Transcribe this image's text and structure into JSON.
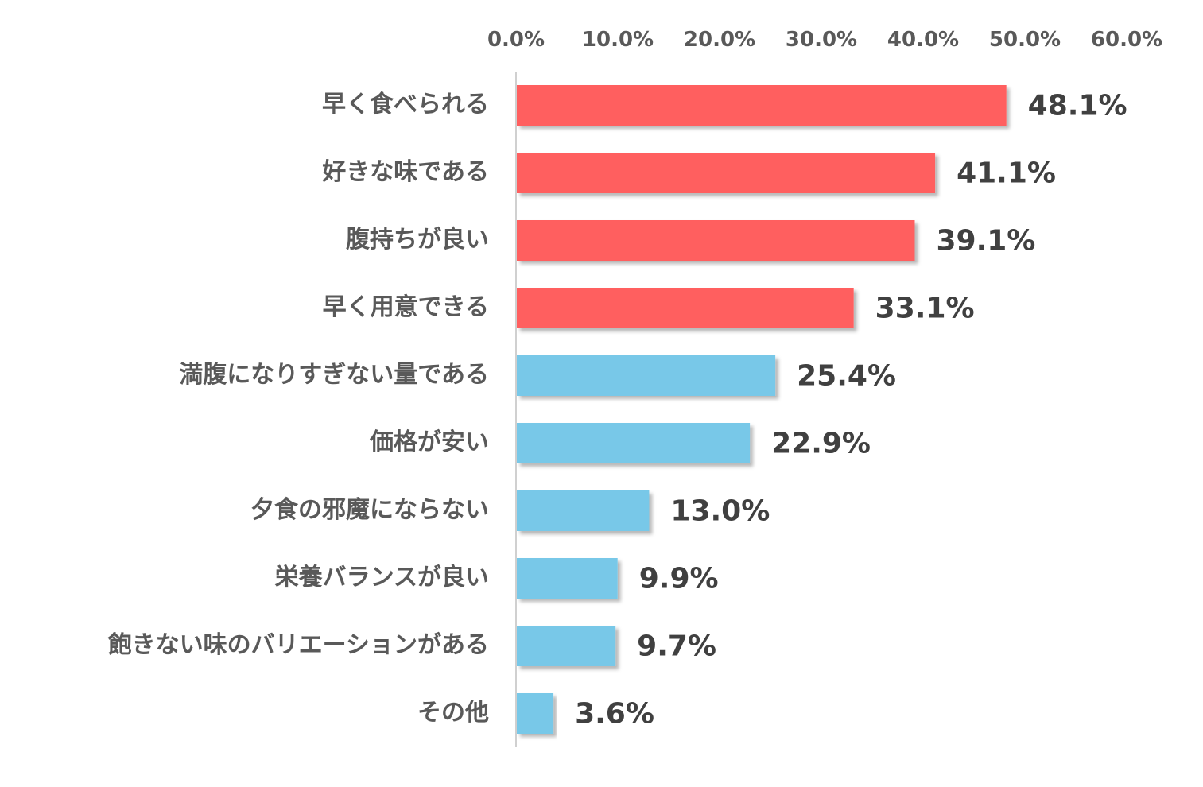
{
  "chart_data": {
    "type": "bar",
    "orientation": "horizontal",
    "title": "",
    "xlabel": "",
    "ylabel": "",
    "xlim": [
      0,
      60
    ],
    "x_ticks": [
      "0.0%",
      "10.0%",
      "20.0%",
      "30.0%",
      "40.0%",
      "50.0%",
      "60.0%"
    ],
    "x_axis_position": "top",
    "grid": false,
    "legend": "none",
    "categories": [
      "早く食べられる",
      "好きな味である",
      "腹持ちが良い",
      "早く用意できる",
      "満腹になりすぎない量である",
      "価格が安い",
      "夕食の邪魔にならない",
      "栄養バランスが良い",
      "飽きない味のバリエーションがある",
      "その他"
    ],
    "values": [
      48.1,
      41.1,
      39.1,
      33.1,
      25.4,
      22.9,
      13.0,
      9.9,
      9.7,
      3.6
    ],
    "value_labels": [
      "48.1%",
      "41.1%",
      "39.1%",
      "33.1%",
      "25.4%",
      "22.9%",
      "13.0%",
      "9.9%",
      "9.7%",
      "3.6%"
    ],
    "highlight_count": 4,
    "colors": {
      "highlight": "#FF5F5F",
      "normal": "#78C8E8",
      "axis": "#D0D0D0",
      "label_text": "#595959",
      "value_text": "#404040"
    }
  }
}
